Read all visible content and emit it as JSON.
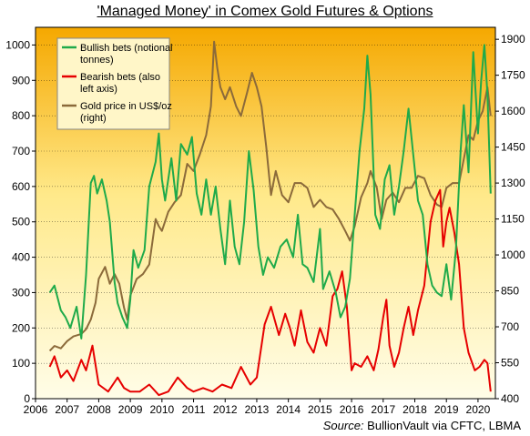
{
  "chart_data": {
    "type": "line",
    "title": "'Managed Money' in Comex Gold Futures & Options",
    "source_label": "Source:",
    "source_text": "BullionVault via CFTC, LBMA",
    "x_ticks": [
      "2006",
      "2007",
      "2008",
      "2009",
      "2010",
      "2011",
      "2012",
      "2013",
      "2014",
      "2015",
      "2016",
      "2017",
      "2018",
      "2019",
      "2020"
    ],
    "xlim": [
      2006.0,
      2020.55
    ],
    "ylim_left": [
      0,
      1050
    ],
    "ylim_right": [
      400,
      1950
    ],
    "left_ticks": [
      0,
      100,
      200,
      300,
      400,
      500,
      600,
      700,
      800,
      900,
      1000
    ],
    "right_ticks": [
      400,
      550,
      700,
      850,
      1000,
      1150,
      1300,
      1450,
      1600,
      1750,
      1900
    ],
    "legend_position": "top-left",
    "background_gradient": [
      "#f5a800",
      "#ffe98a",
      "#fffde8"
    ],
    "series": [
      {
        "name": "Bullish bets (notional tonnes)",
        "axis": "left",
        "color": "#1faa4a",
        "x": [
          2006.45,
          2006.6,
          2006.8,
          2006.95,
          2007.1,
          2007.3,
          2007.45,
          2007.6,
          2007.75,
          2007.85,
          2007.95,
          2008.1,
          2008.25,
          2008.35,
          2008.5,
          2008.6,
          2008.75,
          2008.9,
          2009.0,
          2009.1,
          2009.25,
          2009.45,
          2009.6,
          2009.8,
          2009.9,
          2010.0,
          2010.1,
          2010.3,
          2010.45,
          2010.6,
          2010.8,
          2010.95,
          2011.1,
          2011.25,
          2011.4,
          2011.55,
          2011.7,
          2011.85,
          2012.0,
          2012.15,
          2012.3,
          2012.45,
          2012.6,
          2012.75,
          2012.9,
          2013.05,
          2013.2,
          2013.35,
          2013.55,
          2013.75,
          2013.95,
          2014.15,
          2014.3,
          2014.45,
          2014.6,
          2014.8,
          2015.0,
          2015.1,
          2015.3,
          2015.5,
          2015.65,
          2015.8,
          2015.95,
          2016.1,
          2016.25,
          2016.4,
          2016.5,
          2016.6,
          2016.75,
          2016.9,
          2017.05,
          2017.2,
          2017.35,
          2017.5,
          2017.65,
          2017.8,
          2017.95,
          2018.1,
          2018.25,
          2018.4,
          2018.55,
          2018.7,
          2018.85,
          2019.0,
          2019.15,
          2019.3,
          2019.45,
          2019.55,
          2019.7,
          2019.85,
          2020.0,
          2020.1,
          2020.2,
          2020.3,
          2020.4
        ],
        "values": [
          300,
          320,
          250,
          230,
          200,
          260,
          170,
          350,
          610,
          630,
          580,
          620,
          560,
          500,
          330,
          270,
          230,
          200,
          280,
          420,
          370,
          420,
          600,
          670,
          750,
          620,
          560,
          680,
          560,
          720,
          690,
          740,
          580,
          520,
          620,
          520,
          600,
          480,
          380,
          560,
          430,
          380,
          500,
          700,
          590,
          430,
          350,
          400,
          370,
          430,
          450,
          400,
          520,
          380,
          370,
          330,
          480,
          310,
          360,
          300,
          230,
          260,
          340,
          520,
          700,
          820,
          970,
          860,
          520,
          480,
          620,
          660,
          520,
          600,
          700,
          820,
          690,
          560,
          520,
          380,
          320,
          300,
          290,
          380,
          280,
          420,
          700,
          830,
          640,
          980,
          750,
          900,
          1000,
          860,
          580
        ]
      },
      {
        "name": "Bearish bets (also left axis)",
        "axis": "left",
        "color": "#e60000",
        "x": [
          2006.45,
          2006.6,
          2006.8,
          2007.0,
          2007.2,
          2007.45,
          2007.6,
          2007.8,
          2008.0,
          2008.3,
          2008.6,
          2008.8,
          2009.0,
          2009.3,
          2009.6,
          2009.9,
          2010.2,
          2010.5,
          2010.8,
          2011.0,
          2011.3,
          2011.6,
          2011.9,
          2012.2,
          2012.5,
          2012.8,
          2013.0,
          2013.1,
          2013.25,
          2013.45,
          2013.7,
          2013.9,
          2014.05,
          2014.2,
          2014.4,
          2014.6,
          2014.8,
          2015.0,
          2015.2,
          2015.4,
          2015.55,
          2015.7,
          2015.85,
          2016.0,
          2016.1,
          2016.3,
          2016.5,
          2016.7,
          2016.85,
          2017.0,
          2017.1,
          2017.2,
          2017.35,
          2017.5,
          2017.65,
          2017.8,
          2017.95,
          2018.1,
          2018.3,
          2018.5,
          2018.65,
          2018.8,
          2018.9,
          2019.0,
          2019.1,
          2019.25,
          2019.4,
          2019.55,
          2019.7,
          2019.9,
          2020.05,
          2020.2,
          2020.3,
          2020.4
        ],
        "values": [
          90,
          120,
          60,
          80,
          50,
          110,
          80,
          150,
          40,
          20,
          60,
          30,
          20,
          20,
          40,
          10,
          20,
          60,
          30,
          20,
          30,
          20,
          40,
          30,
          90,
          40,
          60,
          120,
          210,
          260,
          180,
          240,
          200,
          150,
          250,
          160,
          130,
          200,
          150,
          290,
          310,
          360,
          260,
          80,
          100,
          90,
          120,
          80,
          140,
          230,
          280,
          150,
          90,
          130,
          200,
          260,
          180,
          250,
          320,
          500,
          560,
          590,
          430,
          500,
          540,
          470,
          380,
          200,
          130,
          80,
          90,
          110,
          100,
          20
        ]
      },
      {
        "name": "Gold price in US$/oz (right)",
        "axis": "right",
        "color": "#8b6a3a",
        "x": [
          2006.45,
          2006.6,
          2006.8,
          2007.0,
          2007.2,
          2007.45,
          2007.6,
          2007.75,
          2007.9,
          2008.0,
          2008.2,
          2008.35,
          2008.5,
          2008.65,
          2008.8,
          2008.9,
          2009.0,
          2009.2,
          2009.4,
          2009.6,
          2009.8,
          2009.9,
          2010.0,
          2010.2,
          2010.4,
          2010.6,
          2010.8,
          2011.0,
          2011.2,
          2011.4,
          2011.55,
          2011.65,
          2011.75,
          2011.85,
          2012.0,
          2012.15,
          2012.35,
          2012.5,
          2012.7,
          2012.85,
          2013.0,
          2013.15,
          2013.3,
          2013.45,
          2013.6,
          2013.8,
          2014.0,
          2014.2,
          2014.4,
          2014.6,
          2014.8,
          2015.0,
          2015.2,
          2015.4,
          2015.6,
          2015.8,
          2015.95,
          2016.1,
          2016.3,
          2016.5,
          2016.6,
          2016.8,
          2016.95,
          2017.1,
          2017.3,
          2017.5,
          2017.7,
          2017.9,
          2018.1,
          2018.3,
          2018.5,
          2018.7,
          2018.85,
          2019.0,
          2019.2,
          2019.4,
          2019.55,
          2019.7,
          2019.85,
          2020.0,
          2020.15,
          2020.3,
          2020.4
        ],
        "values": [
          600,
          620,
          610,
          640,
          660,
          670,
          690,
          730,
          800,
          900,
          950,
          880,
          920,
          880,
          780,
          730,
          830,
          900,
          920,
          960,
          1150,
          1120,
          1100,
          1180,
          1220,
          1250,
          1380,
          1350,
          1420,
          1500,
          1620,
          1890,
          1780,
          1700,
          1650,
          1700,
          1620,
          1580,
          1680,
          1760,
          1700,
          1620,
          1450,
          1250,
          1350,
          1250,
          1220,
          1300,
          1300,
          1280,
          1200,
          1230,
          1200,
          1190,
          1150,
          1100,
          1060,
          1120,
          1240,
          1300,
          1350,
          1280,
          1150,
          1230,
          1260,
          1220,
          1280,
          1280,
          1330,
          1320,
          1250,
          1210,
          1200,
          1280,
          1300,
          1300,
          1400,
          1500,
          1480,
          1560,
          1600,
          1700,
          1580
        ]
      }
    ]
  }
}
